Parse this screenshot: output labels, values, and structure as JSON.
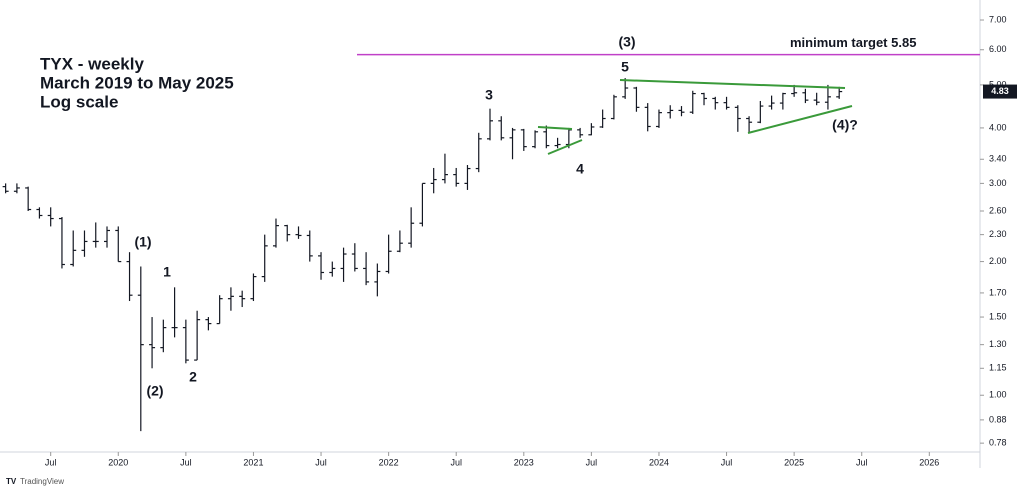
{
  "chart_data": {
    "type": "ohlc",
    "title_lines": [
      "TYX - weekly",
      "March 2019 to May 2025",
      "Log scale"
    ],
    "log_scale": true,
    "color": "#131722",
    "x": [
      "2019-03",
      "2019-04",
      "2019-05",
      "2019-06",
      "2019-07",
      "2019-08",
      "2019-09",
      "2019-10",
      "2019-11",
      "2019-12",
      "2020-01",
      "2020-02",
      "2020-03",
      "2020-04",
      "2020-05",
      "2020-06",
      "2020-07",
      "2020-08",
      "2020-09",
      "2020-10",
      "2020-11",
      "2020-12",
      "2021-01",
      "2021-02",
      "2021-03",
      "2021-04",
      "2021-05",
      "2021-06",
      "2021-07",
      "2021-08",
      "2021-09",
      "2021-10",
      "2021-11",
      "2021-12",
      "2022-01",
      "2022-02",
      "2022-03",
      "2022-04",
      "2022-05",
      "2022-06",
      "2022-07",
      "2022-08",
      "2022-09",
      "2022-10",
      "2022-11",
      "2022-12",
      "2023-01",
      "2023-02",
      "2023-03",
      "2023-04",
      "2023-05",
      "2023-06",
      "2023-07",
      "2023-08",
      "2023-09",
      "2023-10",
      "2023-11",
      "2023-12",
      "2024-01",
      "2024-02",
      "2024-03",
      "2024-04",
      "2024-05",
      "2024-06",
      "2024-07",
      "2024-08",
      "2024-09",
      "2024-10",
      "2024-11",
      "2024-12",
      "2025-01",
      "2025-02",
      "2025-03",
      "2025-04",
      "2025-05"
    ],
    "open": [
      2.95,
      2.88,
      2.93,
      2.62,
      2.54,
      2.5,
      1.97,
      2.12,
      2.22,
      2.22,
      2.35,
      2.0,
      1.68,
      1.3,
      1.28,
      1.42,
      1.42,
      1.2,
      1.48,
      1.45,
      1.65,
      1.67,
      1.65,
      1.85,
      2.17,
      2.41,
      2.3,
      2.29,
      2.06,
      1.89,
      1.93,
      2.08,
      1.93,
      1.8,
      1.9,
      2.11,
      2.2,
      2.44,
      3.0,
      3.06,
      3.14,
      3.0,
      3.24,
      3.78,
      4.15,
      3.8,
      3.96,
      3.63,
      3.92,
      3.65,
      3.67,
      3.96,
      3.86,
      4.02,
      4.2,
      4.7,
      4.92,
      4.45,
      4.03,
      4.33,
      4.38,
      4.34,
      4.78,
      4.66,
      4.56,
      4.45,
      4.2,
      4.12,
      4.48,
      4.55,
      4.78,
      4.8,
      4.62,
      4.57,
      4.7
    ],
    "high": [
      3.0,
      3.0,
      2.95,
      2.65,
      2.65,
      2.52,
      2.35,
      2.35,
      2.45,
      2.4,
      2.4,
      2.1,
      1.95,
      1.5,
      1.48,
      1.75,
      1.48,
      1.55,
      1.5,
      1.68,
      1.75,
      1.72,
      1.88,
      2.3,
      2.5,
      2.42,
      2.4,
      2.35,
      2.1,
      2.0,
      2.15,
      2.2,
      2.1,
      1.98,
      2.3,
      2.35,
      2.65,
      3.0,
      3.25,
      3.5,
      3.25,
      3.3,
      3.9,
      4.42,
      4.25,
      4.0,
      3.98,
      3.95,
      4.05,
      3.8,
      4.0,
      4.0,
      4.1,
      4.4,
      4.75,
      5.18,
      4.95,
      4.55,
      4.4,
      4.5,
      4.48,
      4.85,
      4.8,
      4.7,
      4.7,
      4.5,
      4.25,
      4.6,
      4.73,
      4.8,
      5.0,
      4.9,
      4.8,
      5.0,
      4.95
    ],
    "low": [
      2.85,
      2.85,
      2.6,
      2.5,
      2.4,
      1.93,
      1.95,
      2.05,
      2.15,
      2.15,
      2.0,
      1.63,
      0.83,
      1.15,
      1.25,
      1.35,
      1.18,
      1.2,
      1.4,
      1.45,
      1.55,
      1.58,
      1.63,
      1.8,
      2.15,
      2.22,
      2.25,
      2.0,
      1.82,
      1.85,
      1.8,
      1.9,
      1.77,
      1.67,
      1.88,
      2.1,
      2.15,
      2.4,
      2.85,
      3.0,
      2.95,
      2.9,
      3.18,
      3.75,
      3.75,
      3.4,
      3.55,
      3.6,
      3.6,
      3.6,
      3.6,
      3.8,
      3.85,
      4.0,
      4.18,
      4.65,
      4.35,
      3.93,
      4.0,
      4.2,
      4.25,
      4.3,
      4.5,
      4.4,
      4.4,
      3.92,
      3.9,
      4.1,
      4.4,
      4.4,
      4.7,
      4.55,
      4.5,
      4.4,
      4.65
    ],
    "close": [
      2.88,
      2.93,
      2.62,
      2.54,
      2.5,
      1.97,
      2.12,
      2.22,
      2.22,
      2.35,
      2.0,
      1.68,
      1.3,
      1.28,
      1.42,
      1.42,
      1.2,
      1.48,
      1.45,
      1.65,
      1.67,
      1.65,
      1.85,
      2.17,
      2.41,
      2.3,
      2.29,
      2.06,
      1.89,
      1.93,
      2.08,
      1.93,
      1.8,
      1.9,
      2.11,
      2.2,
      2.44,
      3.0,
      3.06,
      3.14,
      3.0,
      3.24,
      3.78,
      4.15,
      3.8,
      3.96,
      3.63,
      3.92,
      3.65,
      3.67,
      3.96,
      3.86,
      4.02,
      4.2,
      4.7,
      4.92,
      4.45,
      4.03,
      4.33,
      4.38,
      4.34,
      4.78,
      4.66,
      4.56,
      4.45,
      4.2,
      4.12,
      4.48,
      4.55,
      4.78,
      4.8,
      4.62,
      4.57,
      4.7,
      4.83
    ],
    "xlim": [
      "2019-03",
      "2026-06"
    ],
    "xticks": [
      {
        "value": "2019-07",
        "label": "Jul"
      },
      {
        "value": "2020-01",
        "label": "2020"
      },
      {
        "value": "2020-07",
        "label": "Jul"
      },
      {
        "value": "2021-01",
        "label": "2021"
      },
      {
        "value": "2021-07",
        "label": "Jul"
      },
      {
        "value": "2022-01",
        "label": "2022"
      },
      {
        "value": "2022-07",
        "label": "Jul"
      },
      {
        "value": "2023-01",
        "label": "2023"
      },
      {
        "value": "2023-07",
        "label": "Jul"
      },
      {
        "value": "2024-01",
        "label": "2024"
      },
      {
        "value": "2024-07",
        "label": "Jul"
      },
      {
        "value": "2025-01",
        "label": "2025"
      },
      {
        "value": "2025-07",
        "label": "Jul"
      },
      {
        "value": "2026-01",
        "label": "2026"
      }
    ],
    "ylim": [
      0.745,
      7.45
    ],
    "yticks": [
      {
        "value": 7,
        "label": "7.00"
      },
      {
        "value": 6,
        "label": "6.00"
      },
      {
        "value": 5,
        "label": "5.00"
      },
      {
        "value": 4,
        "label": "4.00"
      },
      {
        "value": 3.4,
        "label": "3.40"
      },
      {
        "value": 3,
        "label": "3.00"
      },
      {
        "value": 2.6,
        "label": "2.60"
      },
      {
        "value": 2.3,
        "label": "2.30"
      },
      {
        "value": 2,
        "label": "2.00"
      },
      {
        "value": 1.7,
        "label": "1.70"
      },
      {
        "value": 1.5,
        "label": "1.50"
      },
      {
        "value": 1.3,
        "label": "1.30"
      },
      {
        "value": 1.15,
        "label": "1.15"
      },
      {
        "value": 1,
        "label": "1.00"
      },
      0.88,
      0.78
    ],
    "target_line": {
      "value": 5.85,
      "label": "minimum target 5.85",
      "color": "#c040c8"
    },
    "trend_color": "#3a9a3a",
    "annotations": [
      "(1)",
      "1",
      "(2)",
      "2",
      "3",
      "4",
      "5",
      "(3)",
      "(4)?"
    ],
    "branding": "TradingView"
  }
}
